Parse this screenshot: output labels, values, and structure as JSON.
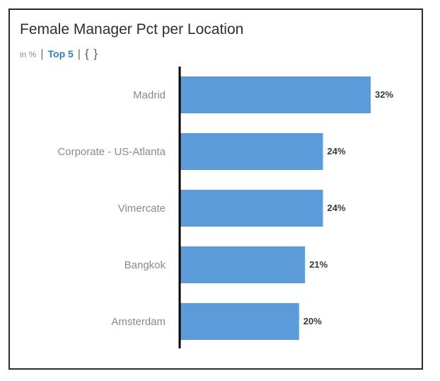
{
  "card": {
    "title": "Female Manager Pct per Location",
    "unit": "in %",
    "separator": "|",
    "top_label": "Top 5",
    "filter_icon": "curly-braces-icon",
    "filter_glyph": "{ }"
  },
  "chart_data": {
    "type": "bar",
    "orientation": "horizontal",
    "title": "Female Manager Pct per Location",
    "subtitle": "in %",
    "categories": [
      "Madrid",
      "Corporate - US-Atlanta",
      "Vimercate",
      "Bangkok",
      "Amsterdam"
    ],
    "values": [
      32,
      24,
      24,
      21,
      20
    ],
    "value_labels": [
      "32%",
      "24%",
      "24%",
      "21%",
      "20%"
    ],
    "xlim": [
      0,
      35
    ],
    "grid": false,
    "legend": "none",
    "colors": {
      "bar": "#5b9bd9",
      "axis": "#000000",
      "accent": "#2d7fd0"
    }
  }
}
